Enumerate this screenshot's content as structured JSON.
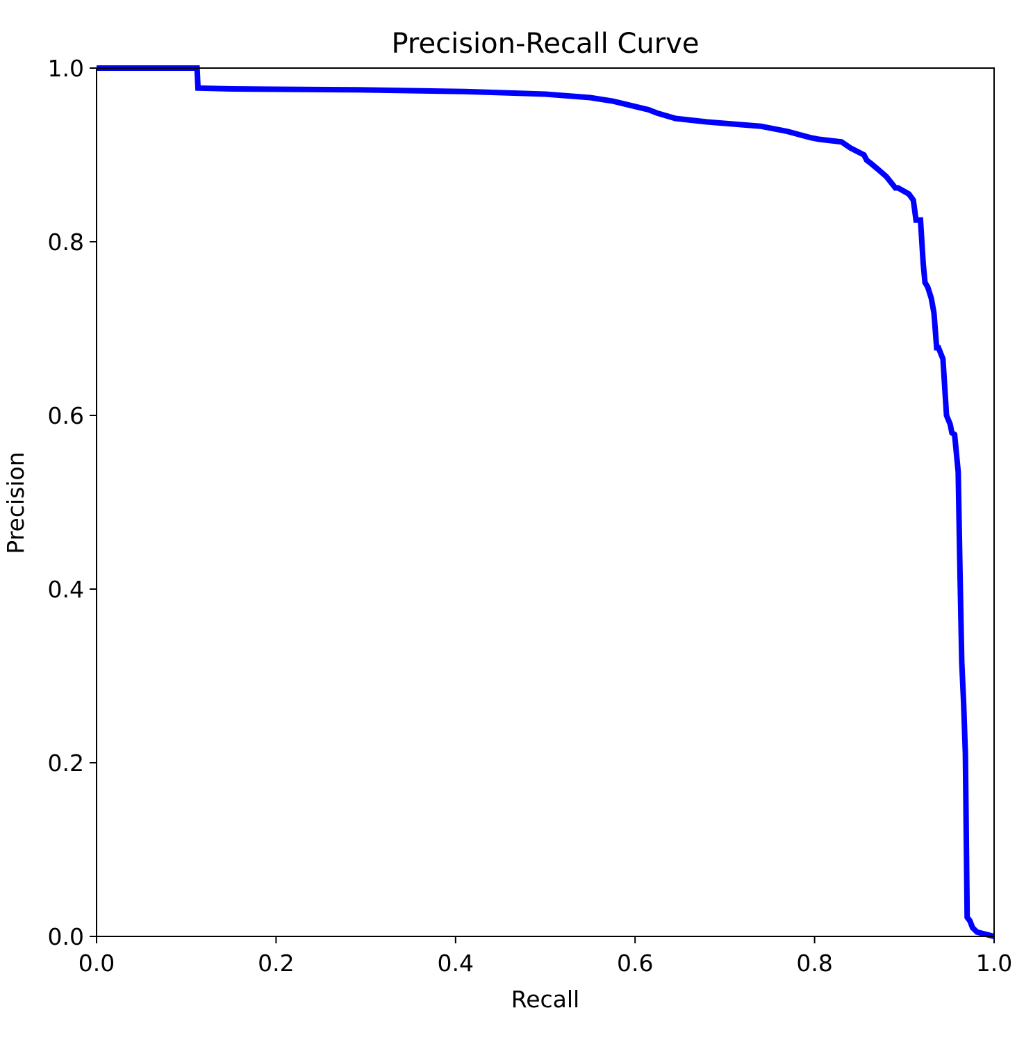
{
  "chart_data": {
    "type": "line",
    "title": "Precision-Recall Curve",
    "xlabel": "Recall",
    "ylabel": "Precision",
    "xlim": [
      0.0,
      1.0
    ],
    "ylim": [
      0.0,
      1.0
    ],
    "xticks": [
      "0.0",
      "0.2",
      "0.4",
      "0.6",
      "0.8",
      "1.0"
    ],
    "yticks": [
      "0.0",
      "0.2",
      "0.4",
      "0.6",
      "0.8",
      "1.0"
    ],
    "grid": false,
    "line_color": "#0000ff",
    "series": [
      {
        "x": [
          0.0,
          0.112,
          0.113,
          0.15,
          0.29,
          0.41,
          0.5,
          0.55,
          0.575,
          0.615,
          0.625,
          0.645,
          0.68,
          0.74,
          0.77,
          0.795,
          0.805,
          0.83,
          0.84,
          0.855,
          0.858,
          0.863,
          0.87,
          0.88,
          0.89,
          0.893,
          0.905,
          0.91,
          0.913,
          0.918,
          0.921,
          0.923,
          0.926,
          0.93,
          0.933,
          0.936,
          0.938,
          0.943,
          0.947,
          0.951,
          0.953,
          0.956,
          0.96,
          0.962,
          0.964,
          0.966,
          0.968,
          0.97,
          0.973,
          0.976,
          0.978,
          0.98,
          0.981,
          1.0
        ],
        "y": [
          1.0,
          1.0,
          0.977,
          0.976,
          0.975,
          0.973,
          0.97,
          0.966,
          0.962,
          0.952,
          0.948,
          0.942,
          0.938,
          0.933,
          0.927,
          0.92,
          0.918,
          0.915,
          0.908,
          0.9,
          0.894,
          0.89,
          0.884,
          0.875,
          0.862,
          0.862,
          0.855,
          0.848,
          0.825,
          0.825,
          0.775,
          0.753,
          0.748,
          0.735,
          0.718,
          0.678,
          0.678,
          0.665,
          0.6,
          0.59,
          0.58,
          0.578,
          0.535,
          0.42,
          0.315,
          0.27,
          0.21,
          0.022,
          0.018,
          0.01,
          0.008,
          0.006,
          0.005,
          0.0
        ]
      }
    ]
  }
}
